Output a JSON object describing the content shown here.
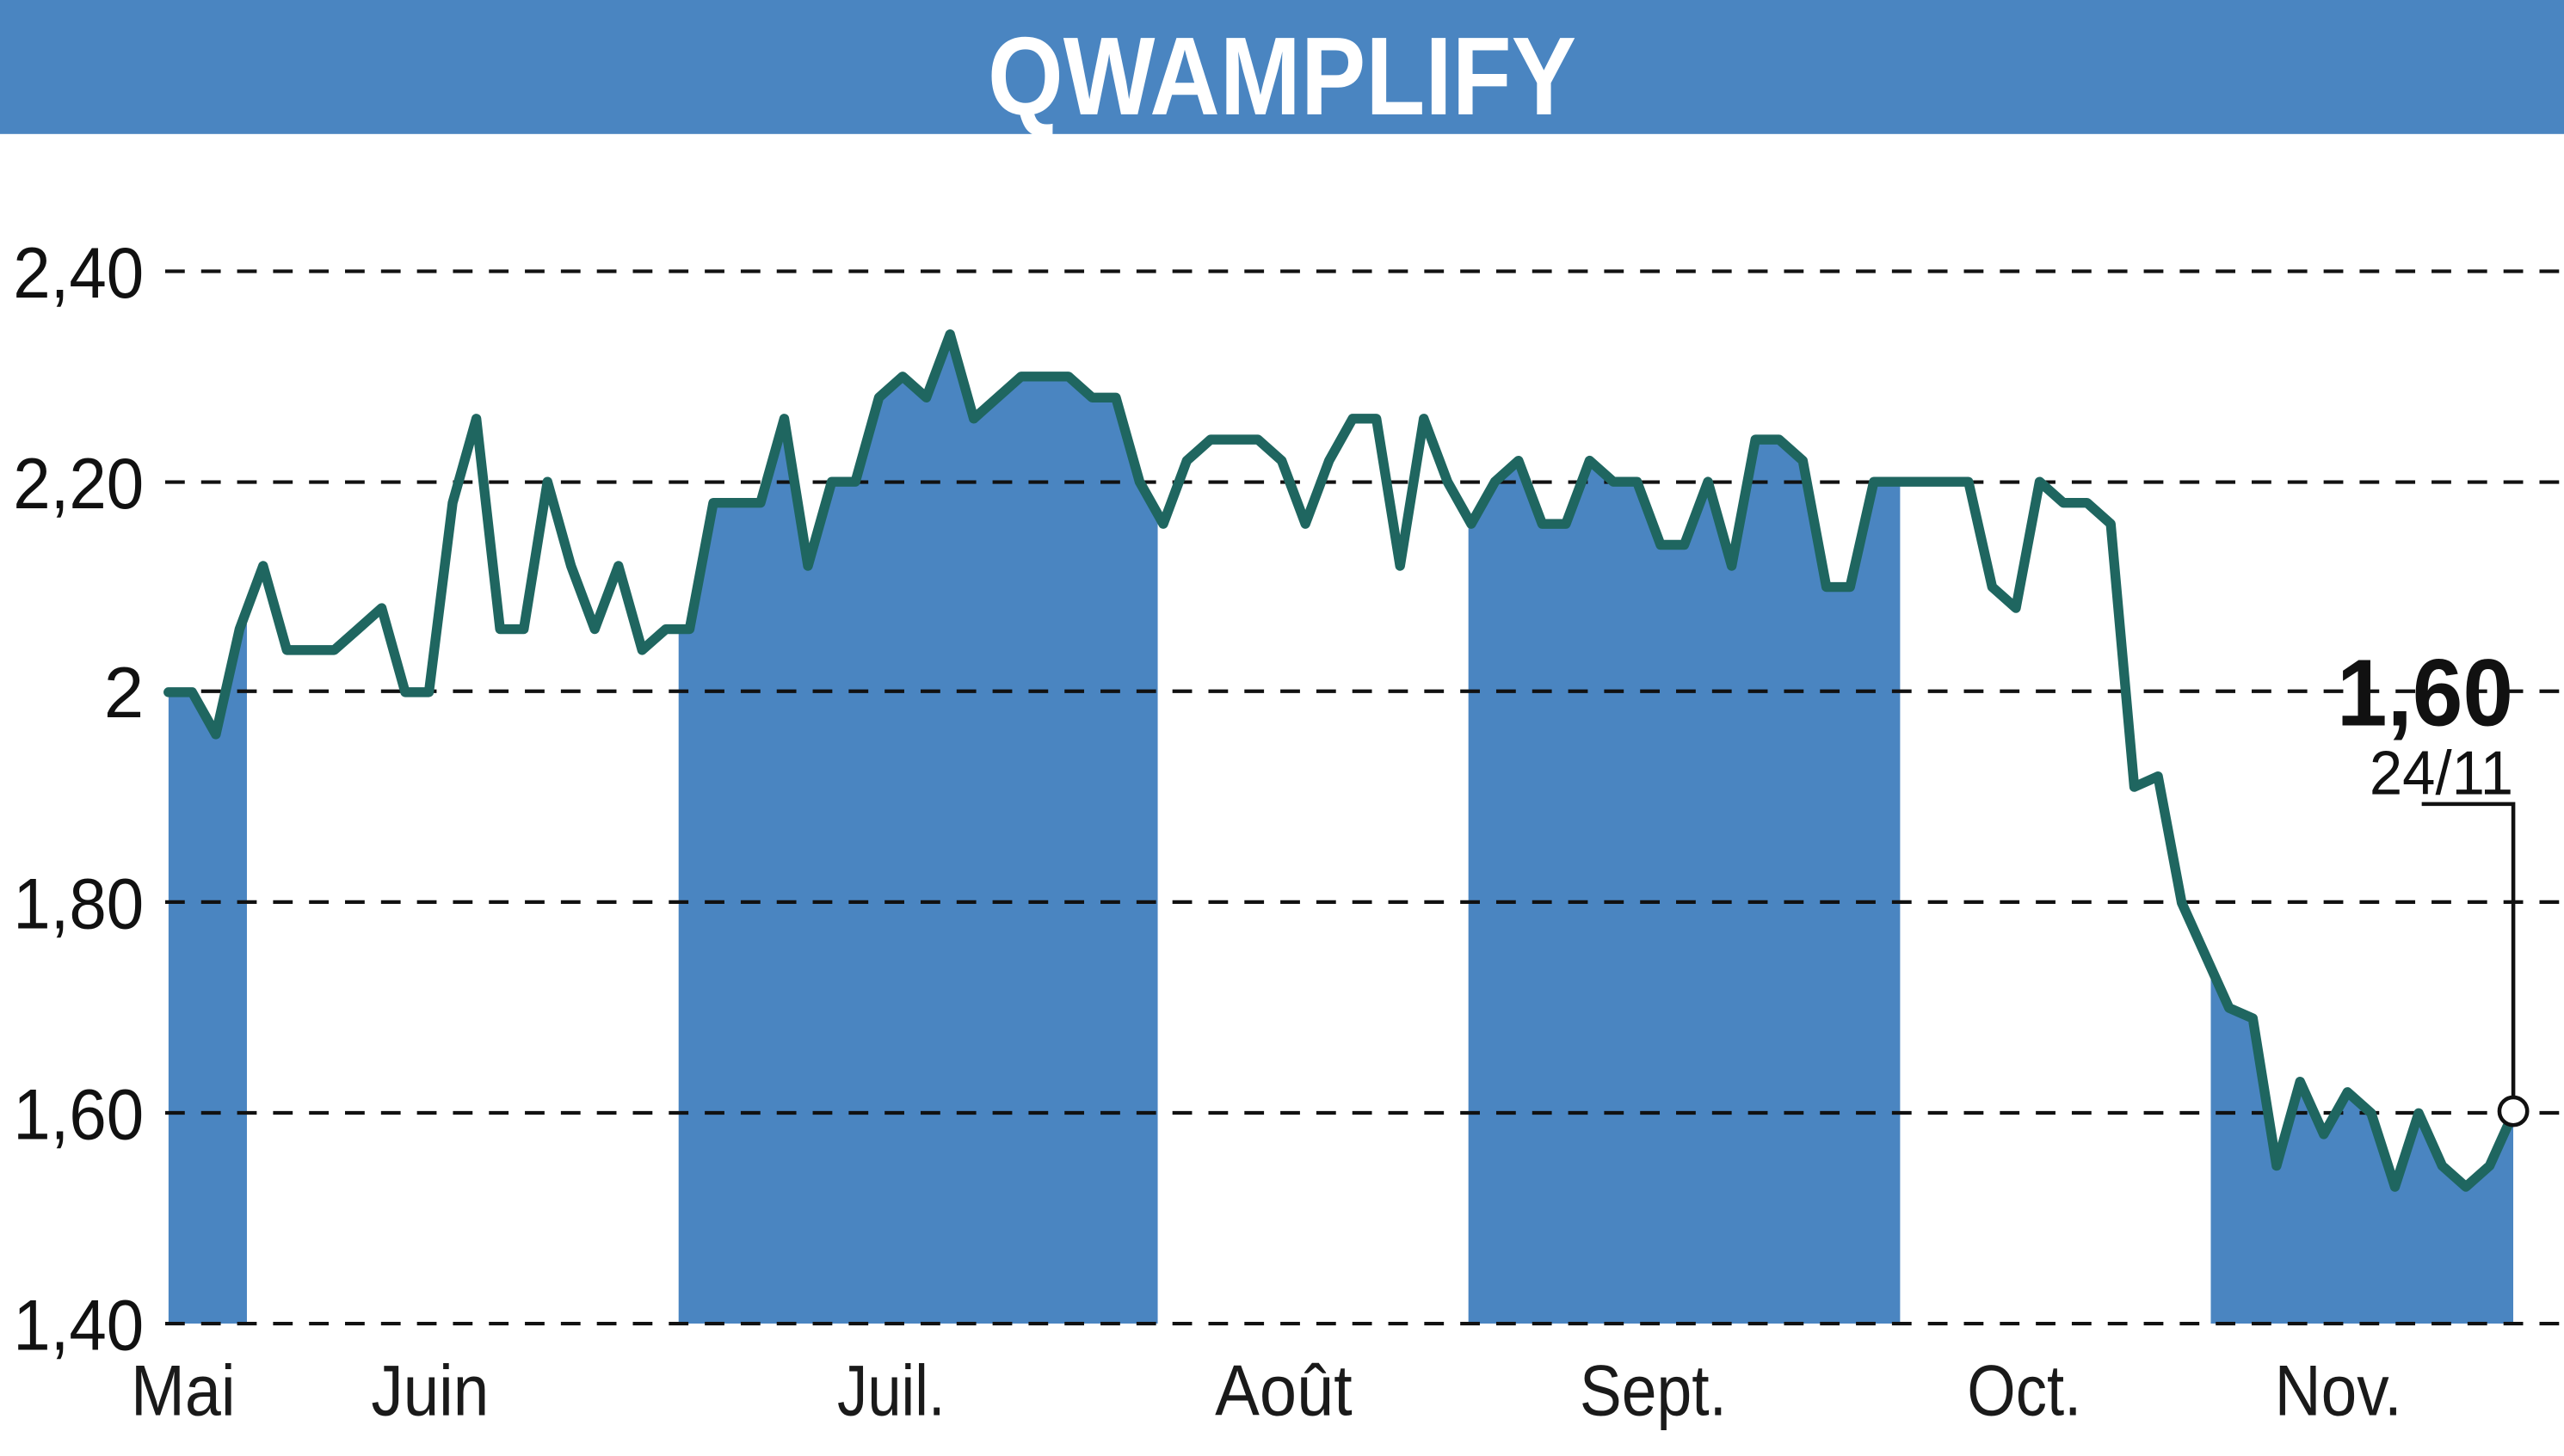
{
  "header": {
    "title": "QWAMPLIFY",
    "background_color": "#4a85c1",
    "text_color": "#ffffff"
  },
  "colors": {
    "line": "#1f6660",
    "fill": "#4a85c1",
    "grid": "#111111",
    "background": "#ffffff"
  },
  "annotation": {
    "last_value": "1,60",
    "last_date": "24/11"
  },
  "chart_data": {
    "type": "line",
    "title": "QWAMPLIFY",
    "xlabel": "",
    "ylabel": "",
    "ylim": [
      1.4,
      2.4
    ],
    "yticks": [
      1.4,
      1.6,
      1.8,
      2.0,
      2.2,
      2.4
    ],
    "ytick_labels": [
      "1,40",
      "1,60",
      "1,80",
      "2",
      "2,20",
      "2,40"
    ],
    "xtick_labels": [
      "Mai",
      "Juin",
      "Juil.",
      "Août",
      "Sept.",
      "Oct.",
      "Nov."
    ],
    "grid": true,
    "grid_style": "dashed horizontal",
    "legend": "none",
    "shaded_months": [
      "Mai",
      "Juil.",
      "Sept.",
      "Nov."
    ],
    "last_point": {
      "date": "24/11",
      "value": 1.6
    },
    "series": [
      {
        "name": "QWAMPLIFY",
        "values": [
          2.0,
          2.0,
          1.96,
          2.06,
          2.12,
          2.04,
          2.04,
          2.04,
          2.06,
          2.08,
          2.0,
          2.0,
          2.18,
          2.26,
          2.06,
          2.06,
          2.2,
          2.12,
          2.06,
          2.12,
          2.04,
          2.06,
          2.06,
          2.18,
          2.18,
          2.18,
          2.26,
          2.12,
          2.2,
          2.2,
          2.28,
          2.3,
          2.28,
          2.34,
          2.26,
          2.28,
          2.3,
          2.3,
          2.3,
          2.28,
          2.28,
          2.2,
          2.16,
          2.22,
          2.24,
          2.24,
          2.24,
          2.22,
          2.16,
          2.22,
          2.26,
          2.26,
          2.12,
          2.26,
          2.2,
          2.16,
          2.2,
          2.22,
          2.16,
          2.16,
          2.22,
          2.2,
          2.2,
          2.14,
          2.14,
          2.2,
          2.12,
          2.24,
          2.24,
          2.22,
          2.1,
          2.1,
          2.2,
          2.2,
          2.2,
          2.2,
          2.2,
          2.1,
          2.08,
          2.2,
          2.18,
          2.18,
          2.16,
          1.91,
          1.92,
          1.8,
          1.75,
          1.7,
          1.69,
          1.55,
          1.63,
          1.58,
          1.62,
          1.6,
          1.53,
          1.6,
          1.55,
          1.53,
          1.55,
          1.6
        ]
      }
    ]
  }
}
